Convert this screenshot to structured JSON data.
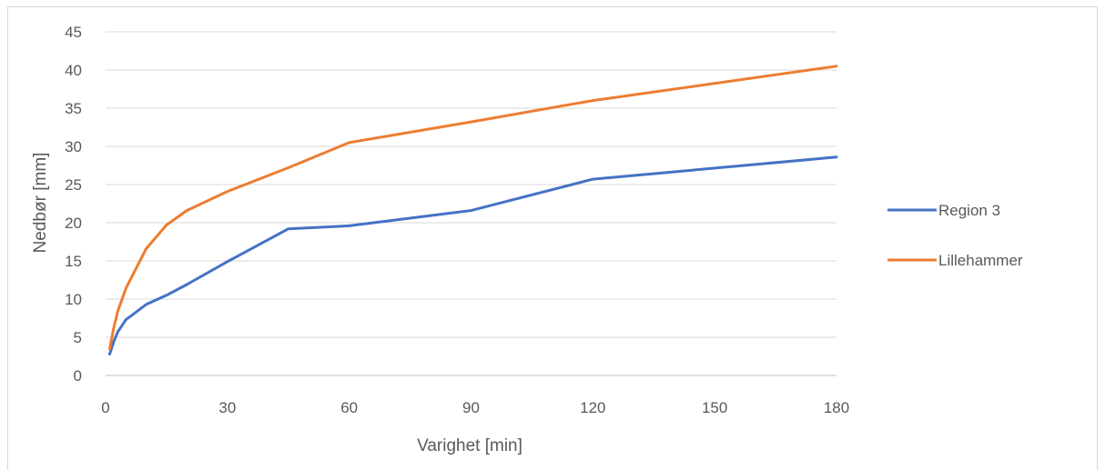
{
  "chart_data": {
    "type": "line",
    "xlabel": "Varighet [min]",
    "ylabel": "Nedbør [mm]",
    "xlim": [
      0,
      180
    ],
    "ylim": [
      0,
      45
    ],
    "xticks": [
      0,
      30,
      60,
      90,
      120,
      150,
      180
    ],
    "yticks": [
      0,
      5,
      10,
      15,
      20,
      25,
      30,
      35,
      40,
      45
    ],
    "grid": "horizontal",
    "legend_position": "right",
    "series": [
      {
        "name": "Region 3",
        "color": "#4472c4",
        "x": [
          1,
          2,
          3,
          5,
          10,
          15,
          20,
          30,
          45,
          60,
          90,
          120,
          180
        ],
        "y": [
          2.8,
          4.4,
          5.7,
          7.3,
          9.3,
          10.5,
          11.9,
          14.9,
          19.2,
          19.6,
          21.6,
          25.7,
          28.6
        ]
      },
      {
        "name": "Lillehammer",
        "color": "#ed7d31",
        "x": [
          1,
          2,
          3,
          5,
          10,
          15,
          20,
          30,
          45,
          60,
          90,
          120,
          180
        ],
        "y": [
          3.5,
          6.2,
          8.4,
          11.4,
          16.6,
          19.7,
          21.6,
          24.1,
          27.2,
          30.5,
          33.2,
          36.0,
          40.5
        ]
      }
    ]
  }
}
